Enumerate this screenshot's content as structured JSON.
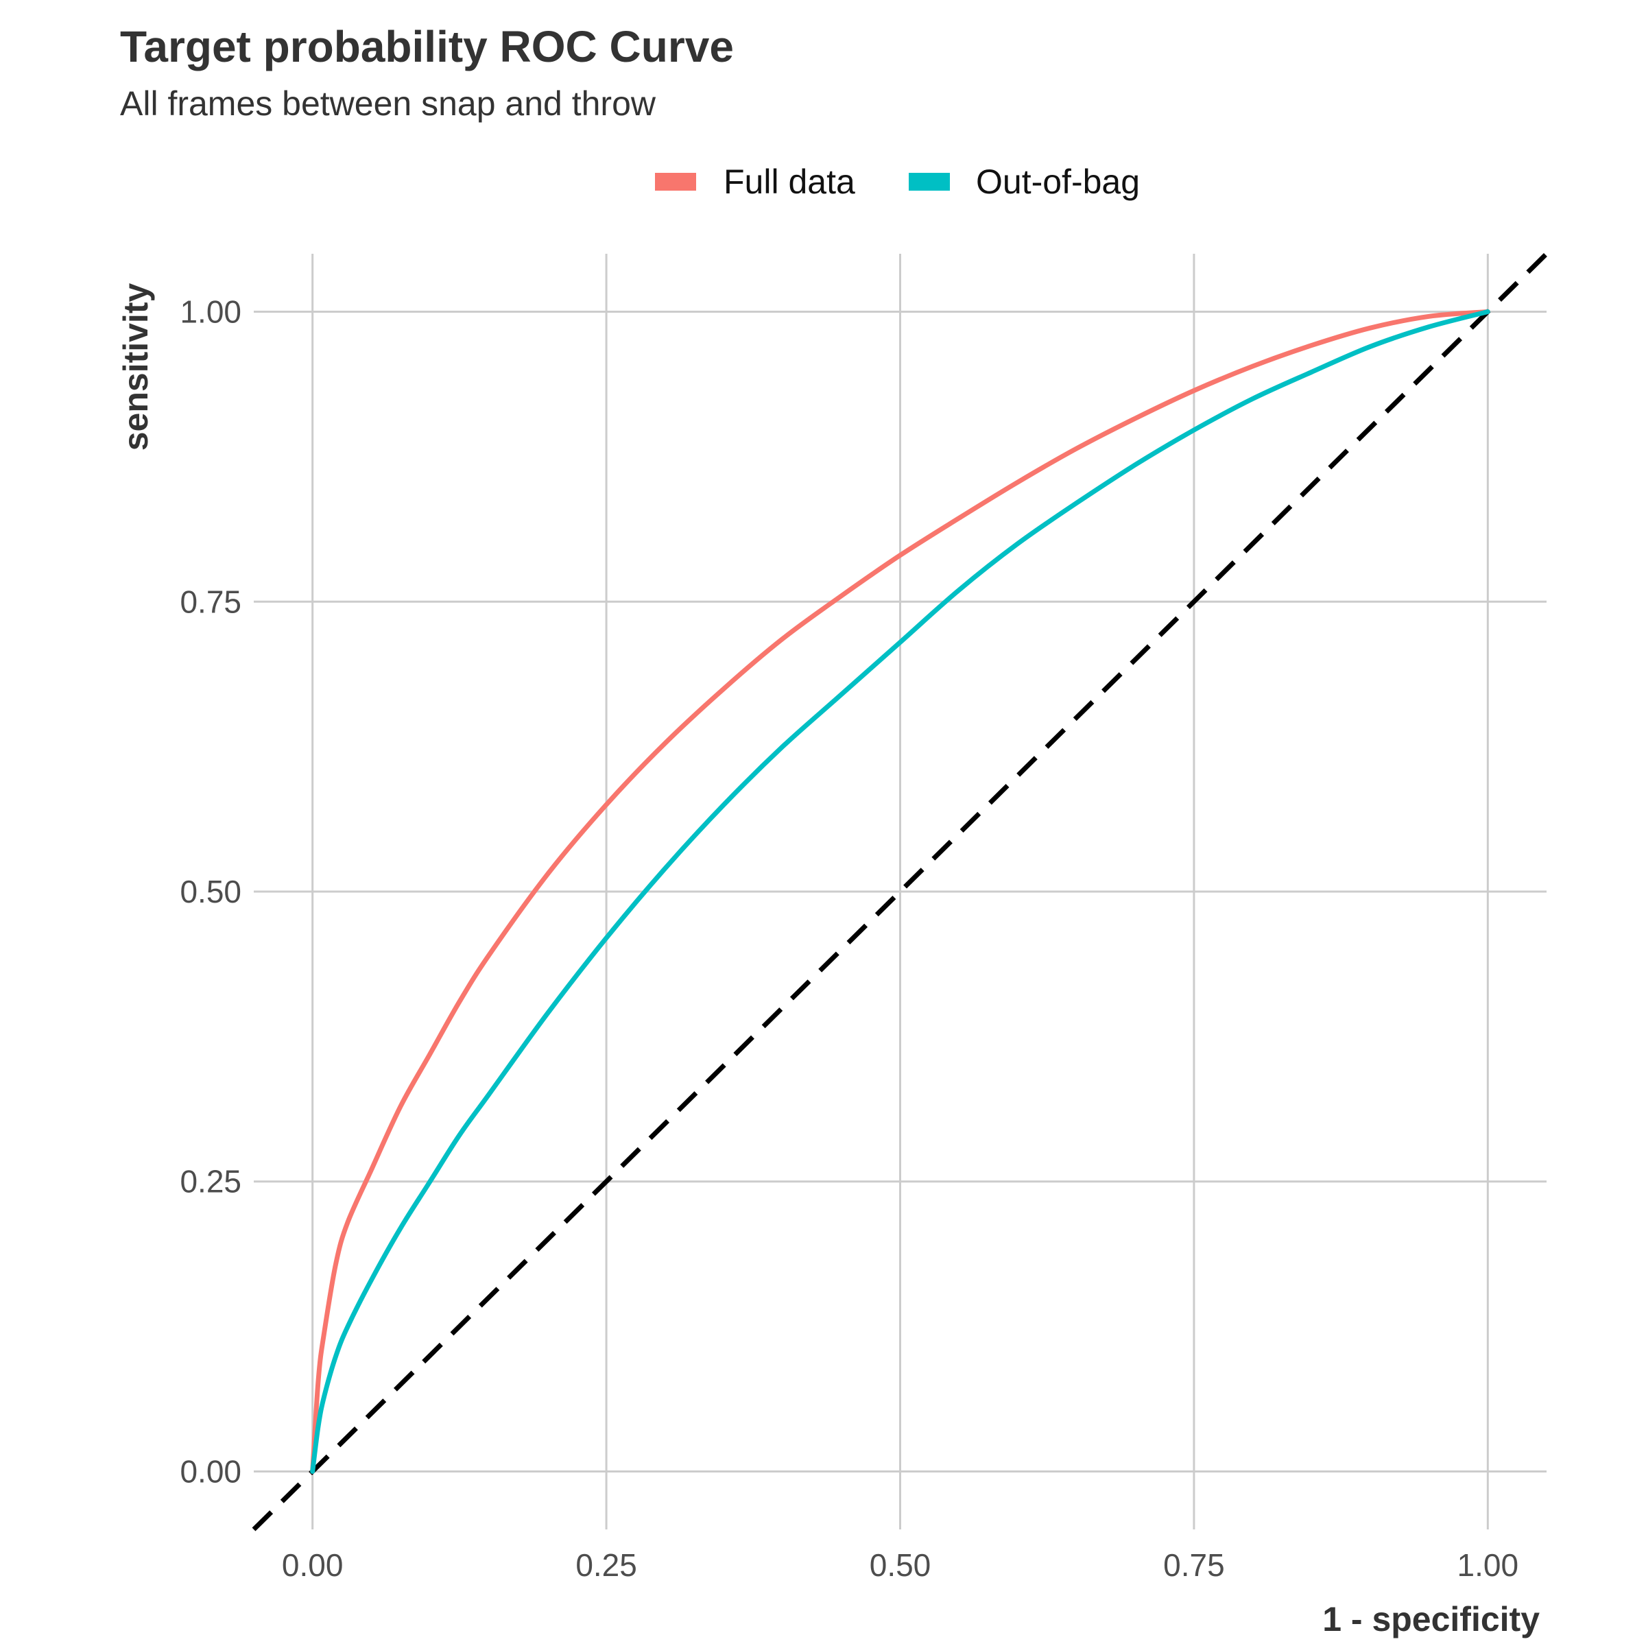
{
  "chart_data": {
    "type": "line",
    "title": "Target probability ROC Curve",
    "subtitle": "All frames between snap and throw",
    "xlabel": "1 - specificity",
    "ylabel": "sensitivity",
    "xlim": [
      -0.05,
      1.05
    ],
    "ylim": [
      -0.05,
      1.05
    ],
    "x_ticks": [
      "0.00",
      "0.25",
      "0.50",
      "0.75",
      "1.00"
    ],
    "y_ticks": [
      "0.00",
      "0.25",
      "0.50",
      "0.75",
      "1.00"
    ],
    "grid": true,
    "legend_position": "top",
    "reference_line": {
      "style": "dashed",
      "color": "#000000",
      "x": [
        -0.05,
        1.05
      ],
      "y": [
        -0.05,
        1.05
      ]
    },
    "series": [
      {
        "name": "Full data",
        "color": "#F8766D",
        "x": [
          0,
          0.005,
          0.01,
          0.02,
          0.03,
          0.05,
          0.075,
          0.1,
          0.125,
          0.15,
          0.2,
          0.25,
          0.3,
          0.35,
          0.4,
          0.45,
          0.5,
          0.55,
          0.6,
          0.65,
          0.7,
          0.75,
          0.8,
          0.85,
          0.9,
          0.95,
          1.0
        ],
        "y": [
          0,
          0.08,
          0.12,
          0.18,
          0.215,
          0.26,
          0.315,
          0.36,
          0.405,
          0.445,
          0.515,
          0.575,
          0.628,
          0.675,
          0.718,
          0.755,
          0.79,
          0.822,
          0.853,
          0.882,
          0.908,
          0.932,
          0.953,
          0.971,
          0.986,
          0.996,
          1.0
        ]
      },
      {
        "name": "Out-of-bag",
        "color": "#00BFC4",
        "x": [
          0,
          0.005,
          0.01,
          0.02,
          0.03,
          0.05,
          0.075,
          0.1,
          0.125,
          0.15,
          0.2,
          0.25,
          0.3,
          0.35,
          0.4,
          0.45,
          0.5,
          0.55,
          0.6,
          0.65,
          0.7,
          0.75,
          0.8,
          0.85,
          0.9,
          0.95,
          1.0
        ],
        "y": [
          0,
          0.04,
          0.065,
          0.1,
          0.125,
          0.165,
          0.21,
          0.25,
          0.29,
          0.325,
          0.395,
          0.46,
          0.52,
          0.575,
          0.625,
          0.67,
          0.715,
          0.76,
          0.8,
          0.835,
          0.868,
          0.898,
          0.925,
          0.948,
          0.97,
          0.987,
          1.0
        ]
      }
    ]
  }
}
